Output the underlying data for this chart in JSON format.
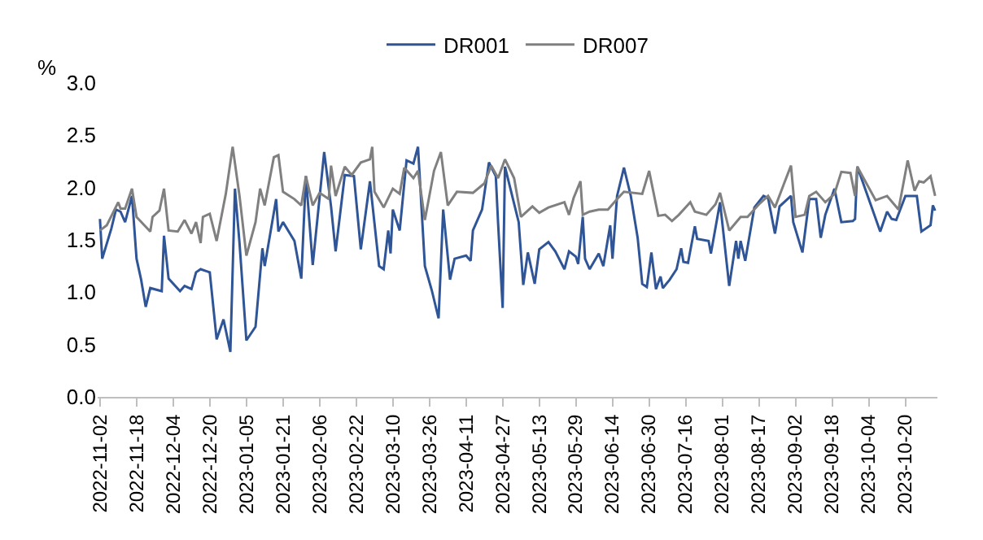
{
  "chart_data": {
    "type": "line",
    "ylabel": "%",
    "legend": "top",
    "grid": false,
    "marker": "none",
    "line_style": "solid",
    "xlim": [
      "2022-11-01",
      "2023-11-03"
    ],
    "xticks": [
      "2022-11-02",
      "2022-11-18",
      "2022-12-04",
      "2022-12-20",
      "2023-01-05",
      "2023-01-21",
      "2023-02-06",
      "2023-02-22",
      "2023-03-10",
      "2023-03-26",
      "2023-04-11",
      "2023-04-27",
      "2023-05-13",
      "2023-05-29",
      "2023-06-14",
      "2023-06-30",
      "2023-07-16",
      "2023-08-01",
      "2023-08-17",
      "2023-09-02",
      "2023-09-18",
      "2023-10-04",
      "2023-10-20"
    ],
    "ylim": [
      0,
      3
    ],
    "yticks": [
      {
        "value": 0,
        "label": "0.0"
      },
      {
        "value": 0.5,
        "label": "0.5"
      },
      {
        "value": 1,
        "label": "1.0"
      },
      {
        "value": 1.5,
        "label": "1.5"
      },
      {
        "value": 2,
        "label": "2.0"
      },
      {
        "value": 2.5,
        "label": "2.5"
      },
      {
        "value": 3,
        "label": "3.0"
      }
    ],
    "series": [
      {
        "name": "DR001",
        "color": "#2f5597",
        "x": [
          "2022-11-02",
          "2022-11-03",
          "2022-11-07",
          "2022-11-09",
          "2022-11-11",
          "2022-11-13",
          "2022-11-16",
          "2022-11-18",
          "2022-11-20",
          "2022-11-22",
          "2022-11-24",
          "2022-11-29",
          "2022-11-30",
          "2022-12-02",
          "2022-12-07",
          "2022-12-09",
          "2022-12-12",
          "2022-12-14",
          "2022-12-16",
          "2022-12-20",
          "2022-12-23",
          "2022-12-26",
          "2022-12-29",
          "2022-12-31",
          "2023-01-02",
          "2023-01-05",
          "2023-01-09",
          "2023-01-12",
          "2023-01-13",
          "2023-01-18",
          "2023-01-19",
          "2023-01-21",
          "2023-01-26",
          "2023-01-29",
          "2023-01-31",
          "2023-02-03",
          "2023-02-08",
          "2023-02-11",
          "2023-02-13",
          "2023-02-17",
          "2023-02-21",
          "2023-02-24",
          "2023-02-28",
          "2023-03-04",
          "2023-03-06",
          "2023-03-08",
          "2023-03-09",
          "2023-03-10",
          "2023-03-13",
          "2023-03-16",
          "2023-03-19",
          "2023-03-21",
          "2023-03-24",
          "2023-03-27",
          "2023-03-30",
          "2023-04-01",
          "2023-04-04",
          "2023-04-06",
          "2023-04-11",
          "2023-04-13",
          "2023-04-14",
          "2023-04-18",
          "2023-04-21",
          "2023-04-24",
          "2023-04-25",
          "2023-04-27",
          "2023-04-28",
          "2023-05-04",
          "2023-05-06",
          "2023-05-08",
          "2023-05-11",
          "2023-05-13",
          "2023-05-17",
          "2023-05-20",
          "2023-05-24",
          "2023-05-26",
          "2023-05-29",
          "2023-05-30",
          "2023-06-01",
          "2023-06-02",
          "2023-06-04",
          "2023-06-08",
          "2023-06-10",
          "2023-06-13",
          "2023-06-14",
          "2023-06-16",
          "2023-06-19",
          "2023-06-22",
          "2023-06-25",
          "2023-06-27",
          "2023-06-29",
          "2023-07-01",
          "2023-07-03",
          "2023-07-05",
          "2023-07-06",
          "2023-07-09",
          "2023-07-12",
          "2023-07-14",
          "2023-07-15",
          "2023-07-17",
          "2023-07-20",
          "2023-07-21",
          "2023-07-26",
          "2023-07-27",
          "2023-07-31",
          "2023-08-04",
          "2023-08-07",
          "2023-08-08",
          "2023-08-09",
          "2023-08-11",
          "2023-08-15",
          "2023-08-19",
          "2023-08-21",
          "2023-08-24",
          "2023-08-26",
          "2023-08-31",
          "2023-09-01",
          "2023-09-05",
          "2023-09-08",
          "2023-09-11",
          "2023-09-13",
          "2023-09-15",
          "2023-09-19",
          "2023-09-22",
          "2023-09-27",
          "2023-09-28",
          "2023-09-29",
          "2023-10-09",
          "2023-10-12",
          "2023-10-14",
          "2023-10-16",
          "2023-10-20",
          "2023-10-25",
          "2023-10-27",
          "2023-10-31",
          "2023-11-01",
          "2023-11-02"
        ],
        "values": [
          1.7,
          1.32,
          1.61,
          1.79,
          1.77,
          1.67,
          1.92,
          1.32,
          1.12,
          0.86,
          1.04,
          1.01,
          1.54,
          1.13,
          1.01,
          1.06,
          1.03,
          1.19,
          1.22,
          1.19,
          0.55,
          0.74,
          0.43,
          1.99,
          1.47,
          0.54,
          0.67,
          1.42,
          1.25,
          1.89,
          1.58,
          1.67,
          1.49,
          1.13,
          2.11,
          1.26,
          2.34,
          1.82,
          1.39,
          2.12,
          2.11,
          1.41,
          2.06,
          1.25,
          1.22,
          1.59,
          1.37,
          1.79,
          1.59,
          2.26,
          2.23,
          2.39,
          1.25,
          1.02,
          0.75,
          1.79,
          1.12,
          1.32,
          1.35,
          1.3,
          1.59,
          1.79,
          2.24,
          2.11,
          1.66,
          0.85,
          2.2,
          1.67,
          1.07,
          1.38,
          1.08,
          1.41,
          1.48,
          1.39,
          1.22,
          1.39,
          1.34,
          1.27,
          1.72,
          1.32,
          1.22,
          1.37,
          1.25,
          1.64,
          1.32,
          1.92,
          2.19,
          1.92,
          1.52,
          1.08,
          1.05,
          1.38,
          1.03,
          1.15,
          1.04,
          1.12,
          1.22,
          1.42,
          1.29,
          1.28,
          1.63,
          1.51,
          1.49,
          1.37,
          1.86,
          1.06,
          1.49,
          1.32,
          1.49,
          1.3,
          1.81,
          1.92,
          1.9,
          1.56,
          1.82,
          1.92,
          1.67,
          1.38,
          1.89,
          1.89,
          1.52,
          1.74,
          1.99,
          1.67,
          1.68,
          1.7,
          2.2,
          1.58,
          1.77,
          1.7,
          1.69,
          1.92,
          1.92,
          1.58,
          1.64,
          1.83,
          1.78
        ]
      },
      {
        "name": "DR007",
        "color": "#808080",
        "x": [
          "2022-11-02",
          "2022-11-05",
          "2022-11-10",
          "2022-11-11",
          "2022-11-13",
          "2022-11-16",
          "2022-11-18",
          "2022-11-24",
          "2022-11-25",
          "2022-11-28",
          "2022-11-30",
          "2022-12-02",
          "2022-12-06",
          "2022-12-09",
          "2022-12-12",
          "2022-12-14",
          "2022-12-16",
          "2022-12-17",
          "2022-12-20",
          "2022-12-23",
          "2022-12-27",
          "2022-12-30",
          "2023-01-02",
          "2023-01-05",
          "2023-01-09",
          "2023-01-11",
          "2023-01-13",
          "2023-01-17",
          "2023-01-19",
          "2023-01-21",
          "2023-01-26",
          "2023-01-29",
          "2023-01-31",
          "2023-02-03",
          "2023-02-06",
          "2023-02-10",
          "2023-02-11",
          "2023-02-13",
          "2023-02-17",
          "2023-02-20",
          "2023-02-24",
          "2023-02-28",
          "2023-03-01",
          "2023-03-02",
          "2023-03-06",
          "2023-03-10",
          "2023-03-13",
          "2023-03-15",
          "2023-03-19",
          "2023-03-21",
          "2023-03-24",
          "2023-03-28",
          "2023-03-31",
          "2023-04-03",
          "2023-04-07",
          "2023-04-14",
          "2023-04-19",
          "2023-04-22",
          "2023-04-25",
          "2023-04-28",
          "2023-05-02",
          "2023-05-05",
          "2023-05-10",
          "2023-05-13",
          "2023-05-17",
          "2023-05-24",
          "2023-05-26",
          "2023-05-28",
          "2023-05-31",
          "2023-06-01",
          "2023-06-04",
          "2023-06-08",
          "2023-06-12",
          "2023-06-16",
          "2023-06-19",
          "2023-06-27",
          "2023-06-30",
          "2023-07-04",
          "2023-07-07",
          "2023-07-10",
          "2023-07-13",
          "2023-07-18",
          "2023-07-20",
          "2023-07-25",
          "2023-07-29",
          "2023-07-31",
          "2023-08-04",
          "2023-08-09",
          "2023-08-12",
          "2023-08-17",
          "2023-08-21",
          "2023-08-24",
          "2023-08-28",
          "2023-08-31",
          "2023-09-02",
          "2023-09-06",
          "2023-09-08",
          "2023-09-11",
          "2023-09-15",
          "2023-09-19",
          "2023-09-22",
          "2023-09-26",
          "2023-09-28",
          "2023-09-29",
          "2023-10-07",
          "2023-10-12",
          "2023-10-17",
          "2023-10-21",
          "2023-10-24",
          "2023-10-26",
          "2023-10-28",
          "2023-10-31",
          "2023-11-02"
        ],
        "values": [
          1.59,
          1.64,
          1.86,
          1.8,
          1.8,
          1.99,
          1.72,
          1.58,
          1.72,
          1.78,
          1.99,
          1.59,
          1.58,
          1.69,
          1.56,
          1.67,
          1.47,
          1.72,
          1.75,
          1.49,
          1.94,
          2.39,
          1.92,
          1.35,
          1.67,
          1.99,
          1.83,
          2.29,
          2.31,
          1.96,
          1.89,
          1.83,
          2.11,
          1.83,
          1.95,
          1.89,
          2.21,
          1.92,
          2.2,
          2.12,
          2.24,
          2.27,
          2.39,
          1.96,
          1.81,
          1.99,
          1.94,
          2.19,
          2.09,
          2.16,
          1.69,
          2.16,
          2.34,
          1.83,
          1.96,
          1.95,
          2.04,
          2.21,
          2.09,
          2.27,
          2.09,
          1.72,
          1.82,
          1.76,
          1.81,
          1.86,
          1.74,
          1.9,
          2.06,
          1.74,
          1.77,
          1.79,
          1.79,
          1.89,
          1.96,
          1.94,
          2.16,
          1.73,
          1.74,
          1.68,
          1.74,
          1.86,
          1.77,
          1.74,
          1.84,
          1.95,
          1.59,
          1.72,
          1.72,
          1.84,
          1.92,
          1.81,
          2.04,
          2.21,
          1.72,
          1.74,
          1.92,
          1.96,
          1.86,
          1.94,
          2.15,
          2.14,
          1.92,
          2.2,
          1.88,
          1.92,
          1.79,
          2.26,
          1.97,
          2.06,
          2.05,
          2.11,
          1.92
        ]
      }
    ]
  }
}
